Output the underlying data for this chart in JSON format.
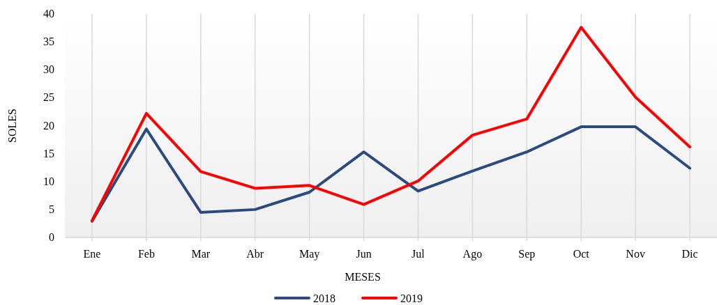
{
  "chart_data": {
    "type": "line",
    "xlabel": "MESES",
    "ylabel": "SOLES",
    "categories": [
      "Ene",
      "Feb",
      "Mar",
      "Abr",
      "May",
      "Jun",
      "Jul",
      "Ago",
      "Sep",
      "Oct",
      "Nov",
      "Dic"
    ],
    "series": [
      {
        "name": "2018",
        "color": "#2b4a7e",
        "values": [
          2.9,
          19.4,
          4.5,
          5.0,
          8.1,
          15.3,
          8.3,
          11.9,
          15.3,
          19.8,
          19.8,
          12.4
        ]
      },
      {
        "name": "2019",
        "color": "#ff0000",
        "values": [
          3.0,
          22.2,
          11.8,
          8.8,
          9.3,
          5.9,
          10.1,
          18.3,
          21.2,
          37.6,
          25.1,
          16.2
        ]
      }
    ],
    "ylim": [
      0,
      40
    ],
    "yticks": [
      0,
      5,
      10,
      15,
      20,
      25,
      30,
      35,
      40
    ],
    "grid": "x",
    "legend": "bottom"
  }
}
